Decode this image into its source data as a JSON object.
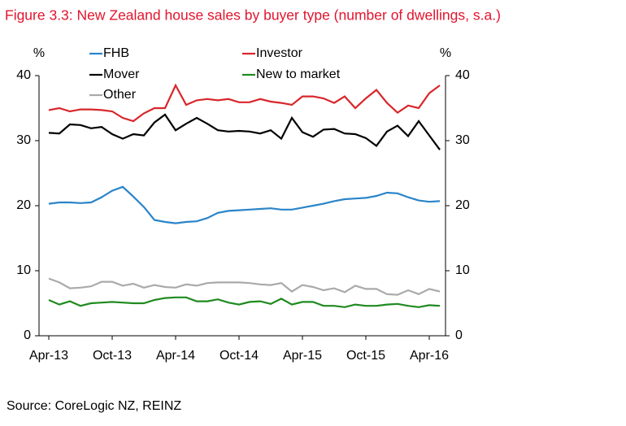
{
  "chart_data": {
    "type": "line",
    "title": "Figure 3.3: New Zealand house sales by buyer type (number of dwellings, s.a.)",
    "y_label": "%",
    "source": "Source: CoreLogic NZ, REINZ",
    "categories": [
      "Apr-13",
      null,
      null,
      null,
      null,
      null,
      "Oct-13",
      null,
      null,
      null,
      null,
      null,
      "Apr-14",
      null,
      null,
      null,
      null,
      null,
      "Oct-14",
      null,
      null,
      null,
      null,
      null,
      "Apr-15",
      null,
      null,
      null,
      null,
      null,
      "Oct-15",
      null,
      null,
      null,
      null,
      null,
      "Apr-16",
      null
    ],
    "ylim": [
      0,
      40
    ],
    "yticks": [
      0,
      10,
      20,
      30,
      40
    ],
    "grid": false,
    "series": [
      {
        "name": "FHB",
        "color": "#2a84c9",
        "values": [
          20.3,
          20.5,
          20.5,
          20.4,
          20.5,
          21.3,
          22.3,
          22.9,
          21.4,
          19.8,
          17.8,
          17.5,
          17.3,
          17.5,
          17.6,
          18.1,
          18.9,
          19.2,
          19.3,
          19.4,
          19.5,
          19.6,
          19.4,
          19.4,
          19.7,
          20,
          20.3,
          20.7,
          21,
          21.1,
          21.2,
          21.5,
          22,
          21.9,
          21.3,
          20.8,
          20.6,
          20.7
        ]
      },
      {
        "name": "Investor",
        "color": "#d9262b",
        "values": [
          34.7,
          35,
          34.5,
          34.8,
          34.8,
          34.7,
          34.5,
          33.5,
          33,
          34.2,
          35,
          35,
          38.5,
          35.5,
          36.2,
          36.4,
          36.2,
          36.4,
          35.9,
          35.9,
          36.4,
          36,
          35.8,
          35.5,
          36.8,
          36.8,
          36.5,
          35.8,
          36.8,
          35,
          36.5,
          37.8,
          35.8,
          34.3,
          35.4,
          35,
          37.3,
          38.5
        ]
      },
      {
        "name": "Mover",
        "color": "#000000",
        "values": [
          31.2,
          31.1,
          32.5,
          32.4,
          31.9,
          32.1,
          31,
          30.3,
          31,
          30.8,
          32.8,
          34,
          31.6,
          32.6,
          33.5,
          32.6,
          31.6,
          31.4,
          31.5,
          31.4,
          31.1,
          31.6,
          30.3,
          33.5,
          31.3,
          30.6,
          31.7,
          31.8,
          31.1,
          31,
          30.4,
          29.2,
          31.4,
          32.3,
          30.7,
          33,
          30.8,
          28.6
        ]
      },
      {
        "name": "New to market",
        "color": "#1f8a1f",
        "values": [
          5.5,
          4.8,
          5.3,
          4.6,
          5,
          5.1,
          5.2,
          5.1,
          5,
          5,
          5.5,
          5.8,
          5.9,
          5.9,
          5.3,
          5.3,
          5.6,
          5.1,
          4.8,
          5.2,
          5.3,
          4.9,
          5.7,
          4.8,
          5.2,
          5.2,
          4.6,
          4.6,
          4.4,
          4.8,
          4.6,
          4.6,
          4.8,
          4.9,
          4.6,
          4.4,
          4.7,
          4.6
        ]
      },
      {
        "name": "Other",
        "color": "#aaaaaa",
        "values": [
          8.8,
          8.2,
          7.3,
          7.4,
          7.6,
          8.3,
          8.3,
          7.7,
          8,
          7.4,
          7.8,
          7.5,
          7.4,
          7.9,
          7.7,
          8.1,
          8.2,
          8.2,
          8.2,
          8.1,
          7.9,
          7.8,
          8.1,
          6.8,
          7.8,
          7.5,
          7,
          7.3,
          6.7,
          7.7,
          7.2,
          7.2,
          6.4,
          6.3,
          7,
          6.4,
          7.2,
          6.8
        ]
      }
    ]
  }
}
